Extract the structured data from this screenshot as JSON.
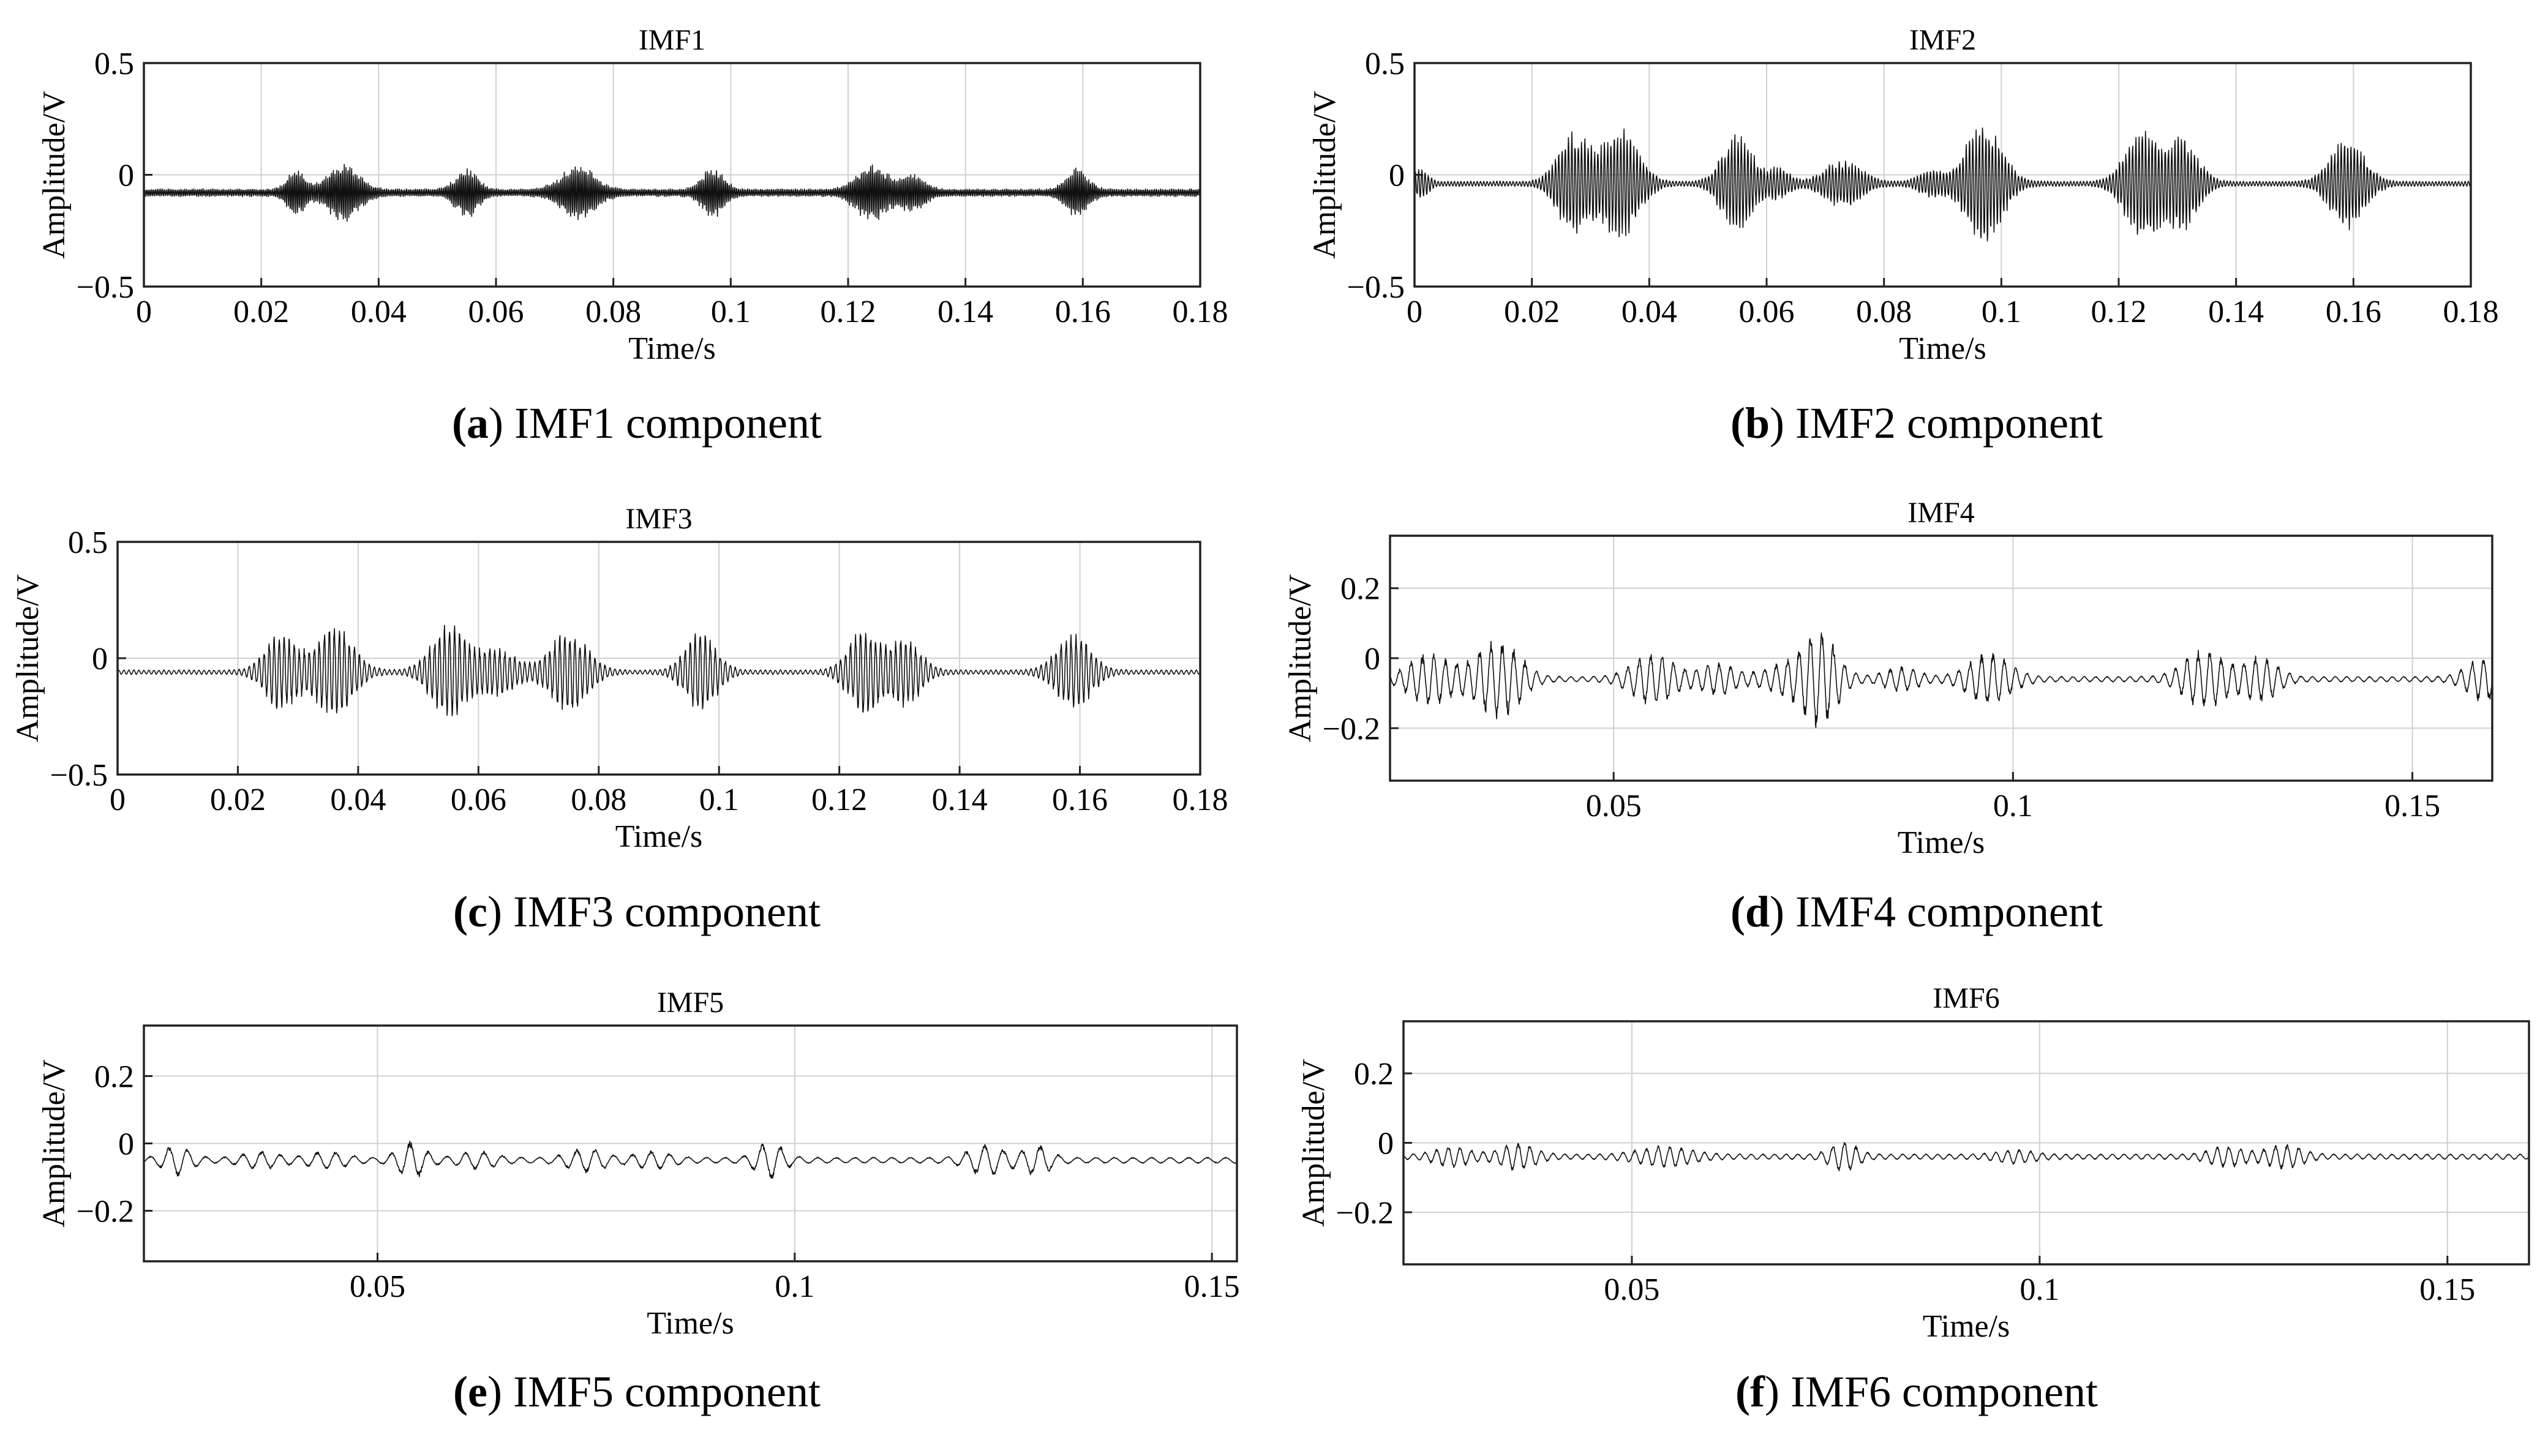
{
  "figure": {
    "background": "#ffffff",
    "signal_color": "#111111",
    "grid_color": "#d0d0d0"
  },
  "chart_data": [
    {
      "type": "line",
      "id": "a",
      "title": "IMF1",
      "xlabel": "Time/s",
      "ylabel": "Amplitude/V",
      "xlim": [
        0,
        0.18
      ],
      "ylim": [
        -0.5,
        0.5
      ],
      "xticks": [
        0,
        0.02,
        0.04,
        0.06,
        0.08,
        0.1,
        0.12,
        0.14,
        0.16,
        0.18
      ],
      "xtick_labels": [
        "0",
        "0.02",
        "0.04",
        "0.06",
        "0.08",
        "0.1",
        "0.12",
        "0.14",
        "0.16",
        "0.18"
      ],
      "yticks": [
        -0.5,
        0,
        0.5
      ],
      "ytick_labels": [
        "−0.5",
        "0",
        "0.5"
      ],
      "grid": true,
      "baseline": -0.08,
      "noise": 0.018,
      "freq": 3200,
      "bursts": [
        [
          0.026,
          0.09,
          0.0015
        ],
        [
          0.034,
          0.12,
          0.0025
        ],
        [
          0.055,
          0.1,
          0.0018
        ],
        [
          0.074,
          0.11,
          0.0028
        ],
        [
          0.097,
          0.1,
          0.0018
        ],
        [
          0.124,
          0.12,
          0.0025
        ],
        [
          0.131,
          0.07,
          0.002
        ],
        [
          0.159,
          0.1,
          0.0018
        ]
      ],
      "caption_letter": "(a)",
      "caption_text": " IMF1 component"
    },
    {
      "type": "line",
      "id": "b",
      "title": "IMF2",
      "xlabel": "Time/s",
      "ylabel": "Amplitude/V",
      "xlim": [
        0,
        0.18
      ],
      "ylim": [
        -0.5,
        0.5
      ],
      "xticks": [
        0,
        0.02,
        0.04,
        0.06,
        0.08,
        0.1,
        0.12,
        0.14,
        0.16,
        0.18
      ],
      "xtick_labels": [
        "0",
        "0.02",
        "0.04",
        "0.06",
        "0.08",
        "0.1",
        "0.12",
        "0.14",
        "0.16",
        "0.18"
      ],
      "yticks": [
        -0.5,
        0,
        0.5
      ],
      "ytick_labels": [
        "−0.5",
        "0",
        "0.5"
      ],
      "grid": true,
      "baseline": -0.04,
      "noise": 0.012,
      "freq": 1800,
      "bursts": [
        [
          0.001,
          0.06,
          0.0012
        ],
        [
          0.027,
          0.22,
          0.0025
        ],
        [
          0.035,
          0.25,
          0.003
        ],
        [
          0.055,
          0.22,
          0.0025
        ],
        [
          0.062,
          0.06,
          0.0018
        ],
        [
          0.073,
          0.1,
          0.003
        ],
        [
          0.088,
          0.05,
          0.002
        ],
        [
          0.097,
          0.27,
          0.003
        ],
        [
          0.124,
          0.24,
          0.0028
        ],
        [
          0.131,
          0.2,
          0.0025
        ],
        [
          0.159,
          0.2,
          0.0028
        ]
      ],
      "caption_letter": "(b)",
      "caption_text": " IMF2 component"
    },
    {
      "type": "line",
      "id": "c",
      "title": "IMF3",
      "xlabel": "Time/s",
      "ylabel": "Amplitude/V",
      "xlim": [
        0,
        0.18
      ],
      "ylim": [
        -0.5,
        0.5
      ],
      "xticks": [
        0,
        0.02,
        0.04,
        0.06,
        0.08,
        0.1,
        0.12,
        0.14,
        0.16,
        0.18
      ],
      "xtick_labels": [
        "0",
        "0.02",
        "0.04",
        "0.06",
        "0.08",
        "0.1",
        "0.12",
        "0.14",
        "0.16",
        "0.18"
      ],
      "yticks": [
        -0.5,
        0,
        0.5
      ],
      "ytick_labels": [
        "−0.5",
        "0",
        "0.5"
      ],
      "grid": true,
      "baseline": -0.06,
      "noise": 0.01,
      "freq": 1200,
      "bursts": [
        [
          0.027,
          0.16,
          0.0025
        ],
        [
          0.036,
          0.2,
          0.003
        ],
        [
          0.055,
          0.2,
          0.0028
        ],
        [
          0.063,
          0.1,
          0.003
        ],
        [
          0.075,
          0.17,
          0.003
        ],
        [
          0.097,
          0.17,
          0.0025
        ],
        [
          0.124,
          0.18,
          0.0025
        ],
        [
          0.131,
          0.14,
          0.0025
        ],
        [
          0.159,
          0.16,
          0.0028
        ]
      ],
      "caption_letter": "(c)",
      "caption_text": " IMF3 component"
    },
    {
      "type": "line",
      "id": "d",
      "title": "IMF4",
      "xlabel": "Time/s",
      "ylabel": "Amplitude/V",
      "xlim": [
        0.022,
        0.16
      ],
      "ylim": [
        -0.35,
        0.35
      ],
      "xticks": [
        0.05,
        0.1,
        0.15
      ],
      "xtick_labels": [
        "0.05",
        "0.1",
        "0.15"
      ],
      "yticks": [
        -0.2,
        0,
        0.2
      ],
      "ytick_labels": [
        "−0.2",
        "0",
        "0.2"
      ],
      "grid": true,
      "baseline": -0.06,
      "noise": 0.008,
      "freq": 700,
      "bursts": [
        [
          0.027,
          0.07,
          0.0025
        ],
        [
          0.034,
          0.07,
          0.002
        ],
        [
          0.037,
          0.07,
          0.002
        ],
        [
          0.055,
          0.07,
          0.0025
        ],
        [
          0.063,
          0.04,
          0.002
        ],
        [
          0.072,
          0.04,
          0.003
        ],
        [
          0.076,
          0.12,
          0.002
        ],
        [
          0.086,
          0.03,
          0.002
        ],
        [
          0.097,
          0.07,
          0.0025
        ],
        [
          0.124,
          0.08,
          0.0025
        ],
        [
          0.131,
          0.06,
          0.002
        ],
        [
          0.159,
          0.06,
          0.002
        ]
      ],
      "caption_letter": "(d)",
      "caption_text": " IMF4 component"
    },
    {
      "type": "line",
      "id": "e",
      "title": "IMF5",
      "xlabel": "Time/s",
      "ylabel": "Amplitude/V",
      "xlim": [
        0.022,
        0.153
      ],
      "ylim": [
        -0.35,
        0.35
      ],
      "xticks": [
        0.05,
        0.1,
        0.15
      ],
      "xtick_labels": [
        "0.05",
        "0.1",
        "0.15"
      ],
      "yticks": [
        -0.2,
        0,
        0.2
      ],
      "ytick_labels": [
        "−0.2",
        "0",
        "0.2"
      ],
      "grid": true,
      "baseline": -0.05,
      "noise": 0.009,
      "freq": 450,
      "bursts": [
        [
          0.026,
          0.04,
          0.0015
        ],
        [
          0.036,
          0.02,
          0.002
        ],
        [
          0.044,
          0.02,
          0.002
        ],
        [
          0.054,
          0.05,
          0.0015
        ],
        [
          0.062,
          0.02,
          0.002
        ],
        [
          0.075,
          0.03,
          0.002
        ],
        [
          0.083,
          0.02,
          0.002
        ],
        [
          0.097,
          0.05,
          0.0015
        ],
        [
          0.123,
          0.04,
          0.002
        ],
        [
          0.129,
          0.04,
          0.0015
        ]
      ],
      "caption_letter": "(e)",
      "caption_text": " IMF5 component"
    },
    {
      "type": "line",
      "id": "f",
      "title": "IMF6",
      "xlabel": "Time/s",
      "ylabel": "Amplitude/V",
      "xlim": [
        0.022,
        0.16
      ],
      "ylim": [
        -0.35,
        0.35
      ],
      "xticks": [
        0.05,
        0.1,
        0.15
      ],
      "xtick_labels": [
        "0.05",
        "0.1",
        "0.15"
      ],
      "yticks": [
        -0.2,
        0,
        0.2
      ],
      "ytick_labels": [
        "−0.2",
        "0",
        "0.2"
      ],
      "grid": true,
      "baseline": -0.04,
      "noise": 0.008,
      "freq": 700,
      "bursts": [
        [
          0.028,
          0.025,
          0.002
        ],
        [
          0.036,
          0.035,
          0.002
        ],
        [
          0.054,
          0.025,
          0.003
        ],
        [
          0.076,
          0.04,
          0.0015
        ],
        [
          0.097,
          0.015,
          0.002
        ],
        [
          0.123,
          0.025,
          0.002
        ],
        [
          0.13,
          0.03,
          0.002
        ]
      ],
      "caption_letter": "(f)",
      "caption_text": " IMF6 component"
    }
  ]
}
